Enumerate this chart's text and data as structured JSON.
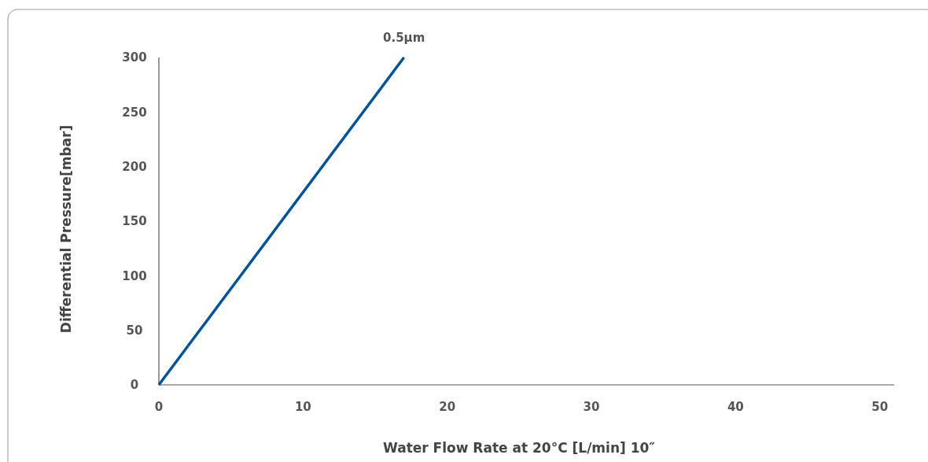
{
  "chart_data": {
    "type": "line",
    "xlabel": "Water Flow Rate at 20°C [L/min] 10″",
    "ylabel": "Differential Pressure[mbar]",
    "series": [
      {
        "name": "0.5µm",
        "color": "#00539b",
        "x": [
          0,
          17
        ],
        "values": [
          0,
          300
        ]
      }
    ],
    "xlim": [
      0,
      51
    ],
    "xticks": [
      0,
      10,
      20,
      30,
      40,
      50
    ],
    "ylim": [
      0,
      300
    ],
    "yticks": [
      0,
      50,
      100,
      150,
      200,
      250,
      300
    ],
    "grid": false,
    "marker": "none",
    "line_style": "solid"
  }
}
